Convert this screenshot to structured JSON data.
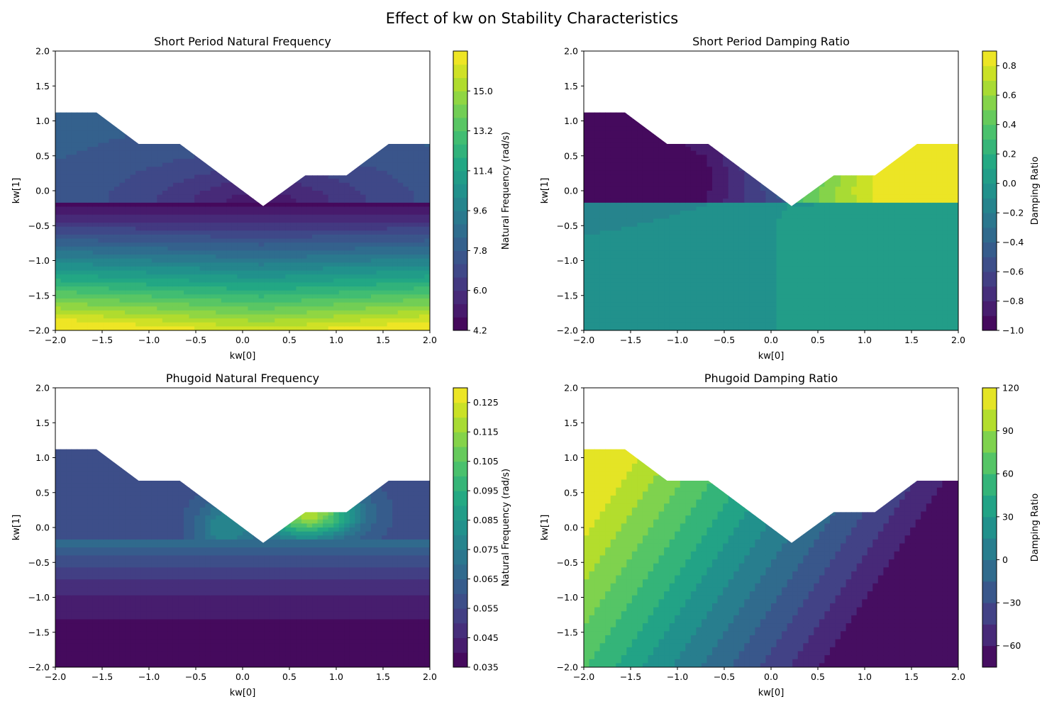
{
  "suptitle": "Effect of kw on Stability Characteristics",
  "colormap": "viridis",
  "chart_data": [
    {
      "type": "heatmap",
      "style": "filled-contour",
      "title": "Short Period Natural Frequency",
      "xlabel": "kw[0]",
      "ylabel": "kw[1]",
      "xlim": [
        -2.0,
        2.0
      ],
      "ylim": [
        -2.0,
        2.0
      ],
      "xticks": [
        "−2.0",
        "−1.5",
        "−1.0",
        "−0.5",
        "0.0",
        "0.5",
        "1.0",
        "1.5",
        "2.0"
      ],
      "yticks": [
        "−2.0",
        "−1.5",
        "−1.0",
        "−0.5",
        "0.0",
        "0.5",
        "1.0",
        "1.5",
        "2.0"
      ],
      "colorbar": {
        "label": "Natural Frequency (rad/s)",
        "range": [
          4.2,
          16.8
        ],
        "levels": 21,
        "ticks": [
          4.2,
          6.0,
          7.8,
          9.6,
          11.4,
          13.2,
          15.0
        ],
        "tick_labels": [
          "4.2",
          "6.0",
          "7.8",
          "9.6",
          "11.4",
          "13.2",
          "15.0"
        ]
      },
      "valid_boundary": [
        [
          -2.0,
          1.12
        ],
        [
          -1.56,
          1.12
        ],
        [
          -1.11,
          0.67
        ],
        [
          -0.67,
          0.67
        ],
        [
          0.22,
          -0.22
        ],
        [
          0.67,
          0.22
        ],
        [
          1.11,
          0.22
        ],
        [
          1.56,
          0.67
        ],
        [
          2.0,
          0.67
        ]
      ],
      "trend": "minimum about 4.5 near kw = (0.2, -0.2); increases toward kw[1] = -2 reaching about 16.5"
    },
    {
      "type": "heatmap",
      "style": "filled-contour",
      "title": "Short Period Damping Ratio",
      "xlabel": "kw[0]",
      "ylabel": "kw[1]",
      "xlim": [
        -2.0,
        2.0
      ],
      "ylim": [
        -2.0,
        2.0
      ],
      "xticks": [
        "−2.0",
        "−1.5",
        "−1.0",
        "−0.5",
        "0.0",
        "0.5",
        "1.0",
        "1.5",
        "2.0"
      ],
      "yticks": [
        "−2.0",
        "−1.5",
        "−1.0",
        "−0.5",
        "0.0",
        "0.5",
        "1.0",
        "1.5",
        "2.0"
      ],
      "colorbar": {
        "label": "Damping Ratio",
        "range": [
          -1.0,
          0.9
        ],
        "levels": 19,
        "ticks": [
          -1.0,
          -0.8,
          -0.6,
          -0.4,
          -0.2,
          0.0,
          0.2,
          0.4,
          0.6,
          0.8
        ],
        "tick_labels": [
          "−1.0",
          "−0.8",
          "−0.6",
          "−0.4",
          "−0.2",
          "0.0",
          "0.2",
          "0.4",
          "0.6",
          "0.8"
        ]
      },
      "valid_boundary": [
        [
          -2.0,
          1.12
        ],
        [
          -1.56,
          1.12
        ],
        [
          -1.11,
          0.67
        ],
        [
          -0.67,
          0.67
        ],
        [
          0.22,
          -0.22
        ],
        [
          0.67,
          0.22
        ],
        [
          1.11,
          0.22
        ],
        [
          1.56,
          0.67
        ],
        [
          2.0,
          0.67
        ]
      ],
      "trend": "about -1.0 at upper left, rising to about 0.9 at upper right; near 0.05 in the lower region"
    },
    {
      "type": "heatmap",
      "style": "filled-contour",
      "title": "Phugoid Natural Frequency",
      "xlabel": "kw[0]",
      "ylabel": "kw[1]",
      "xlim": [
        -2.0,
        2.0
      ],
      "ylim": [
        -2.0,
        2.0
      ],
      "xticks": [
        "−2.0",
        "−1.5",
        "−1.0",
        "−0.5",
        "0.0",
        "0.5",
        "1.0",
        "1.5",
        "2.0"
      ],
      "yticks": [
        "−2.0",
        "−1.5",
        "−1.0",
        "−0.5",
        "0.0",
        "0.5",
        "1.0",
        "1.5",
        "2.0"
      ],
      "colorbar": {
        "label": "Natural Frequency (rad/s)",
        "range": [
          0.035,
          0.13
        ],
        "levels": 19,
        "ticks": [
          0.035,
          0.045,
          0.055,
          0.065,
          0.075,
          0.085,
          0.095,
          0.105,
          0.115,
          0.125
        ],
        "tick_labels": [
          "0.035",
          "0.045",
          "0.055",
          "0.065",
          "0.075",
          "0.085",
          "0.095",
          "0.105",
          "0.115",
          "0.125"
        ]
      },
      "valid_boundary": [
        [
          -2.0,
          1.12
        ],
        [
          -1.56,
          1.12
        ],
        [
          -1.11,
          0.67
        ],
        [
          -0.67,
          0.67
        ],
        [
          0.22,
          -0.22
        ],
        [
          0.67,
          0.22
        ],
        [
          1.11,
          0.22
        ],
        [
          1.56,
          0.67
        ],
        [
          2.0,
          0.67
        ]
      ],
      "trend": "about 0.035 at kw[1] = -2; peaks near 0.13 around kw = (0.7, 0.2)"
    },
    {
      "type": "heatmap",
      "style": "filled-contour",
      "title": "Phugoid Damping Ratio",
      "xlabel": "kw[0]",
      "ylabel": "kw[1]",
      "xlim": [
        -2.0,
        2.0
      ],
      "ylim": [
        -2.0,
        2.0
      ],
      "xticks": [
        "−2.0",
        "−1.5",
        "−1.0",
        "−0.5",
        "0.0",
        "0.5",
        "1.0",
        "1.5",
        "2.0"
      ],
      "yticks": [
        "−2.0",
        "−1.5",
        "−1.0",
        "−0.5",
        "0.0",
        "0.5",
        "1.0",
        "1.5",
        "2.0"
      ],
      "colorbar": {
        "label": "Damping Ratio",
        "range": [
          -75,
          120
        ],
        "levels": 13,
        "ticks": [
          -60,
          -30,
          0,
          30,
          60,
          90,
          120
        ],
        "tick_labels": [
          "−60",
          "−30",
          "0",
          "30",
          "60",
          "90",
          "120"
        ]
      },
      "valid_boundary": [
        [
          -2.0,
          1.12
        ],
        [
          -1.56,
          1.12
        ],
        [
          -1.11,
          0.67
        ],
        [
          -0.67,
          0.67
        ],
        [
          0.22,
          -0.22
        ],
        [
          0.67,
          0.22
        ],
        [
          1.11,
          0.22
        ],
        [
          1.56,
          0.67
        ],
        [
          2.0,
          0.67
        ]
      ],
      "trend": "about 110 at upper left, decreasing to about -75 along kw[0] = 2"
    }
  ]
}
